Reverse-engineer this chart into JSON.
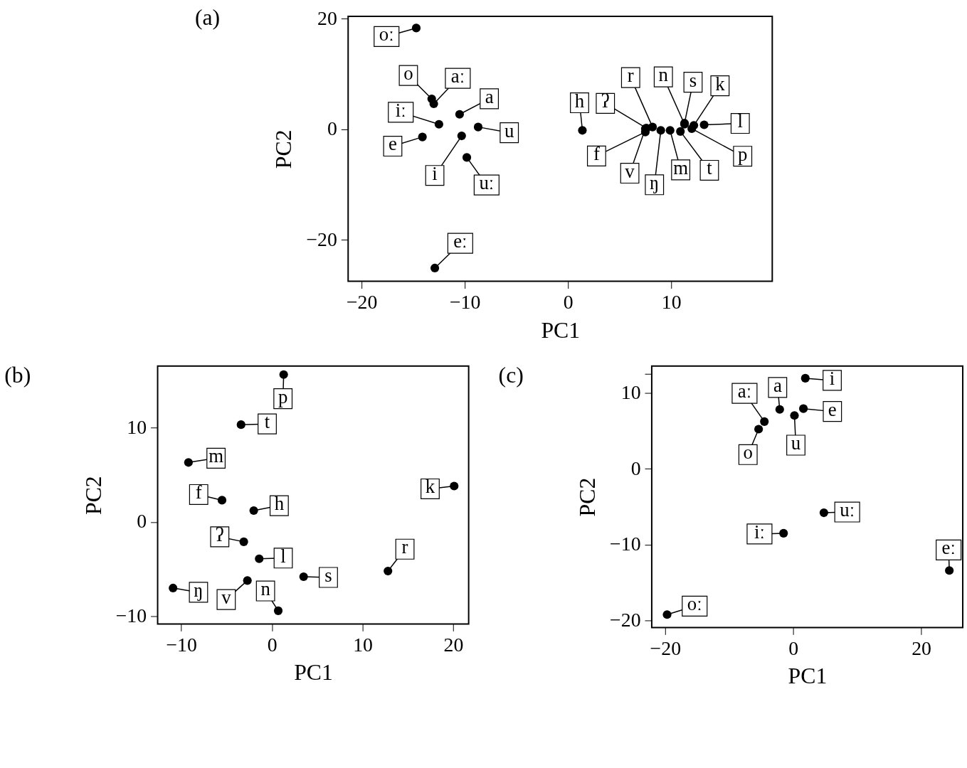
{
  "chart_data": [
    {
      "type": "scatter",
      "title": "(a)",
      "xlabel": "PC1",
      "ylabel": "PC2",
      "marker": "circle",
      "grid": false,
      "xlim": [
        -21.3,
        19.8
      ],
      "ylim": [
        -27.5,
        20.4
      ],
      "xticks": [
        -20,
        -10,
        0,
        10
      ],
      "yticks": [
        -20,
        0,
        20
      ],
      "series": [
        {
          "color": "#000000",
          "x": [
            -14.7,
            -13.2,
            -13.0,
            -10.5,
            -12.5,
            -14.1,
            -8.7,
            -10.3,
            -9.8,
            -12.9,
            1.4,
            7.5,
            7.5,
            7.6,
            8.2,
            9.0,
            9.9,
            10.9,
            11.3,
            11.3,
            12.2,
            12.0,
            13.2
          ],
          "values": [
            18.3,
            5.5,
            4.6,
            2.7,
            0.9,
            -1.4,
            0.4,
            -1.2,
            -5.1,
            -25.1,
            -0.2,
            -0.5,
            0.1,
            0.2,
            0.4,
            -0.2,
            -0.2,
            -0.4,
            0.9,
            1.1,
            0.7,
            0.1,
            0.8
          ],
          "value_labels": [
            "oː",
            "o",
            "aː",
            "a",
            "iː",
            "e",
            "u",
            "i",
            "uː",
            "eː",
            "h",
            "f",
            "v",
            "ʔ",
            "r",
            "ŋ",
            "m",
            "t",
            "n",
            "s",
            "k",
            "p",
            "l"
          ]
        }
      ]
    },
    {
      "type": "scatter",
      "title": "(b)",
      "xlabel": "PC1",
      "ylabel": "PC2",
      "marker": "circle",
      "grid": false,
      "xlim": [
        -12.6,
        21.7
      ],
      "ylim": [
        -10.8,
        16.5
      ],
      "xticks": [
        -10,
        0,
        10,
        20
      ],
      "yticks": [
        -10,
        0,
        10
      ],
      "series": [
        {
          "color": "#000000",
          "x": [
            1.3,
            -3.4,
            -9.2,
            -5.5,
            -2.0,
            -3.1,
            -1.4,
            3.5,
            12.8,
            20.1,
            -10.9,
            -2.7,
            0.7
          ],
          "values": [
            15.6,
            10.3,
            6.3,
            2.3,
            1.2,
            -2.1,
            -3.9,
            -5.8,
            -5.2,
            3.8,
            -7.0,
            -6.2,
            -9.4
          ],
          "value_labels": [
            "p",
            "t",
            "m",
            "f",
            "h",
            "ʔ",
            "l",
            "s",
            "r",
            "k",
            "ŋ",
            "v",
            "n"
          ]
        }
      ]
    },
    {
      "type": "scatter",
      "title": "(c)",
      "xlabel": "PC1",
      "ylabel": "PC2",
      "marker": "circle",
      "grid": false,
      "xlim": [
        -22.1,
        26.5
      ],
      "ylim": [
        -20.9,
        13.5
      ],
      "xticks": [
        -20,
        0,
        20
      ],
      "yticks": [
        -20,
        -10,
        0,
        10,
        {
          "value": 12.5,
          "label": null
        }
      ],
      "series": [
        {
          "color": "#000000",
          "x": [
            1.9,
            -2.1,
            1.6,
            0.2,
            -4.5,
            -5.4,
            4.8,
            -1.5,
            24.4,
            -19.7
          ],
          "values": [
            11.9,
            7.8,
            7.9,
            7.0,
            6.2,
            5.2,
            -5.8,
            -8.5,
            -13.4,
            -19.2
          ],
          "value_labels": [
            "i",
            "a",
            "e",
            "u",
            "aː",
            "o",
            "uː",
            "iː",
            "eː",
            "oː"
          ]
        }
      ]
    }
  ]
}
